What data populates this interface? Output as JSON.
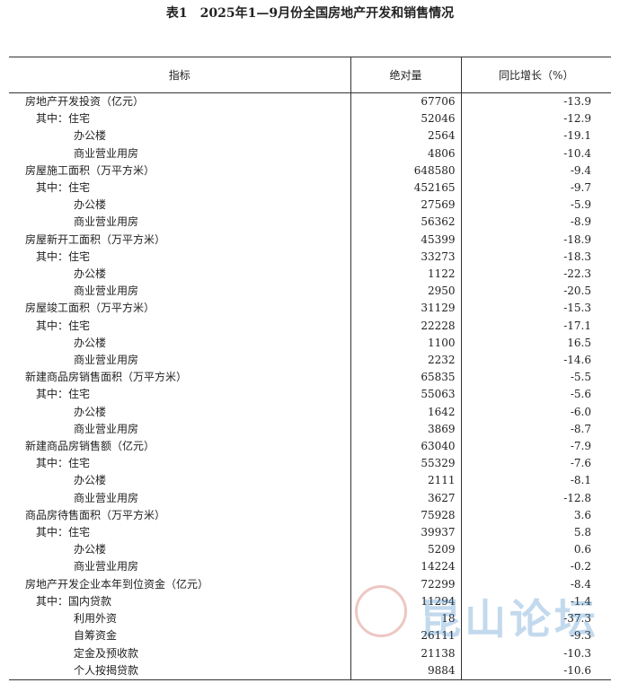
{
  "title": "表1　2025年1—9月份全国房地产开发和销售情况",
  "table": {
    "headers": [
      "指标",
      "绝对量",
      "同比增长（%）"
    ],
    "sections": [
      {
        "label": "房地产开发投资（亿元）",
        "value": "67706",
        "change": "-13.9",
        "items": [
          [
            "其中：住宅",
            "52046",
            "-12.9"
          ],
          [
            "办公楼",
            "2564",
            "-19.1"
          ],
          [
            "商业营业用房",
            "4806",
            "-10.4"
          ]
        ]
      },
      {
        "label": "房屋施工面积（万平方米）",
        "value": "648580",
        "change": "-9.4",
        "items": [
          [
            "其中：住宅",
            "452165",
            "-9.7"
          ],
          [
            "办公楼",
            "27569",
            "-5.9"
          ],
          [
            "商业营业用房",
            "56362",
            "-8.9"
          ]
        ]
      },
      {
        "label": "房屋新开工面积（万平方米）",
        "value": "45399",
        "change": "-18.9",
        "items": [
          [
            "其中：住宅",
            "33273",
            "-18.3"
          ],
          [
            "办公楼",
            "1122",
            "-22.3"
          ],
          [
            "商业营业用房",
            "2950",
            "-20.5"
          ]
        ]
      },
      {
        "label": "房屋竣工面积（万平方米）",
        "value": "31129",
        "change": "-15.3",
        "items": [
          [
            "其中：住宅",
            "22228",
            "-17.1"
          ],
          [
            "办公楼",
            "1100",
            "16.5"
          ],
          [
            "商业营业用房",
            "2232",
            "-14.6"
          ]
        ]
      },
      {
        "label": "新建商品房销售面积（万平方米）",
        "value": "65835",
        "change": "-5.5",
        "items": [
          [
            "其中：住宅",
            "55063",
            "-5.6"
          ],
          [
            "办公楼",
            "1642",
            "-6.0"
          ],
          [
            "商业营业用房",
            "3869",
            "-8.7"
          ]
        ]
      },
      {
        "label": "新建商品房销售额（亿元）",
        "value": "63040",
        "change": "-7.9",
        "items": [
          [
            "其中：住宅",
            "55329",
            "-7.6"
          ],
          [
            "办公楼",
            "2111",
            "-8.1"
          ],
          [
            "商业营业用房",
            "3627",
            "-12.8"
          ]
        ]
      },
      {
        "label": "商品房待售面积（万平方米）",
        "value": "75928",
        "change": "3.6",
        "items": [
          [
            "其中：住宅",
            "39937",
            "5.8"
          ],
          [
            "办公楼",
            "5209",
            "0.6"
          ],
          [
            "商业营业用房",
            "14224",
            "-0.2"
          ]
        ]
      },
      {
        "label": "房地产开发企业本年到位资金（亿元）",
        "value": "72299",
        "change": "-8.4",
        "items": [
          [
            "其中：国内贷款",
            "11294",
            "-1.4"
          ],
          [
            "利用外资",
            "18",
            "-37.3"
          ],
          [
            "自筹资金",
            "26111",
            "-9.3"
          ],
          [
            "定金及预收款",
            "21138",
            "-10.3"
          ],
          [
            "个人按揭贷款",
            "9884",
            "-10.6"
          ]
        ]
      }
    ]
  },
  "watermark": "昆山论坛"
}
